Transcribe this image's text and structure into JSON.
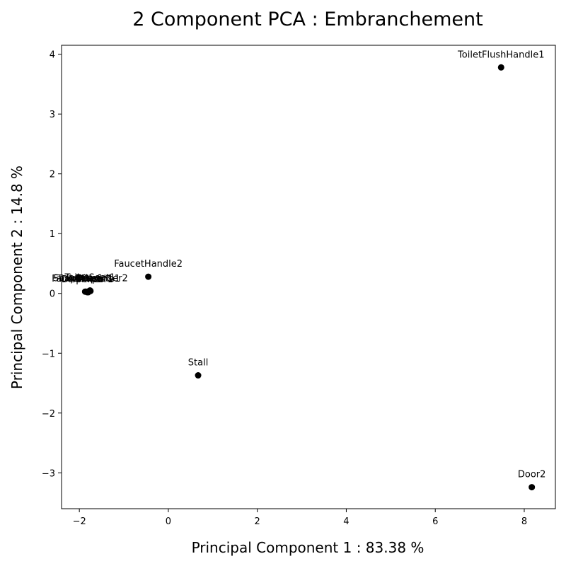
{
  "chart_data": {
    "type": "scatter",
    "title": "2 Component PCA : Embranchement",
    "xlabel": "Principal Component 1 : 83.38 %",
    "ylabel": "Principal Component 2 : 14.8 %",
    "xlim": [
      -2.4,
      8.7
    ],
    "ylim": [
      -3.6,
      4.15
    ],
    "xticks": [
      -2,
      0,
      2,
      4,
      6,
      8
    ],
    "yticks": [
      -3,
      -2,
      -1,
      0,
      1,
      2,
      3,
      4
    ],
    "grid": false,
    "marker_color": "#000000",
    "points": [
      {
        "label": "ToiletFlushHandle1",
        "x": 7.48,
        "y": 3.78
      },
      {
        "label": "FaucetHandle2",
        "x": -0.45,
        "y": 0.28
      },
      {
        "label": "ToiletSeat1",
        "x": -1.76,
        "y": 0.05
      },
      {
        "label": "ToiletPaper1",
        "x": -1.87,
        "y": 0.03
      },
      {
        "label": "Dispenser1",
        "x": -1.82,
        "y": 0.02
      },
      {
        "label": "Door1",
        "x": -1.78,
        "y": 0.04
      },
      {
        "label": "SoapDispenser2",
        "x": -1.75,
        "y": 0.04
      },
      {
        "label": "FaucetHandle1",
        "x": -1.85,
        "y": 0.03
      },
      {
        "label": "Sink1",
        "x": -1.8,
        "y": 0.02
      },
      {
        "label": "Stall",
        "x": 0.67,
        "y": -1.37
      },
      {
        "label": "Door2",
        "x": 8.17,
        "y": -3.24
      }
    ]
  }
}
